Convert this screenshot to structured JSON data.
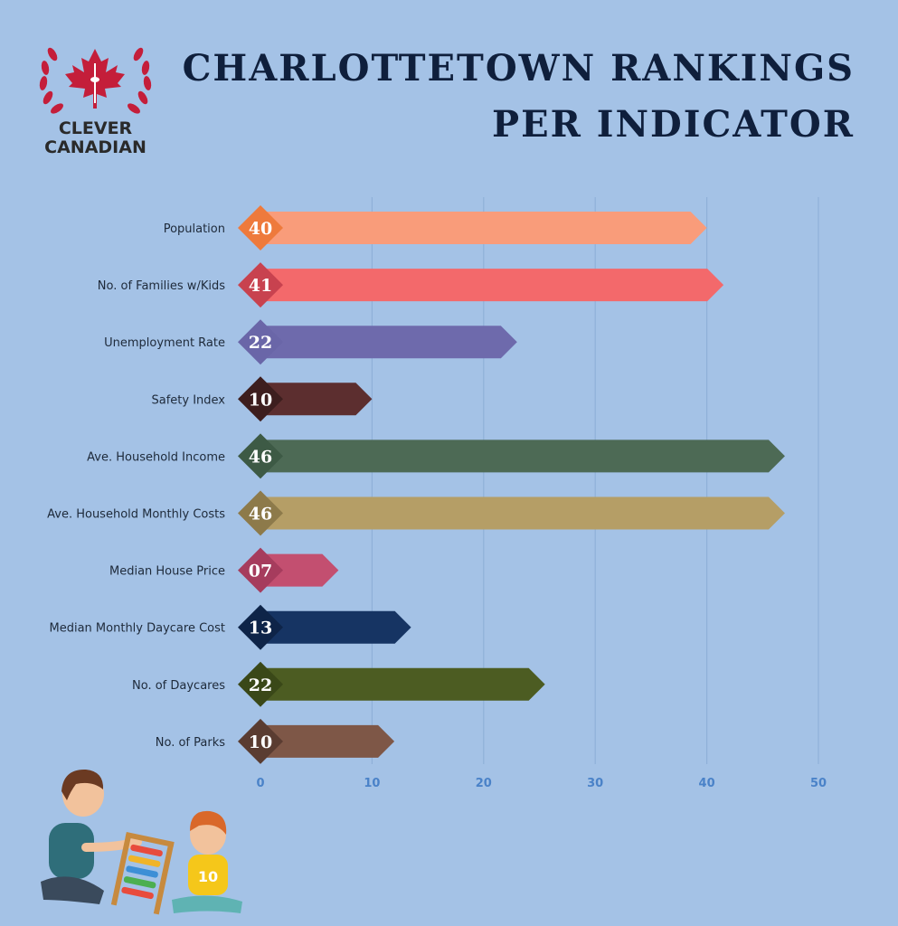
{
  "brand": {
    "line1": "CLEVER",
    "line2": "CANADIAN"
  },
  "title": {
    "line1": "CHARLOTTETOWN RANKINGS",
    "line2": "PER INDICATOR"
  },
  "chart_data": {
    "type": "bar",
    "orientation": "horizontal",
    "categories": [
      "Population",
      "No. of Families w/Kids",
      "Unemployment Rate",
      "Safety Index",
      "Ave. Household Income",
      "Ave. Household Monthly Costs",
      "Median House Price",
      "Median Monthly Daycare Cost",
      "No. of Daycares",
      "No. of Parks"
    ],
    "values": [
      40,
      41,
      22,
      10,
      46,
      46,
      7,
      13,
      22,
      10
    ],
    "value_labels": [
      "40",
      "41",
      "22",
      "10",
      "46",
      "46",
      "07",
      "13",
      "22",
      "10"
    ],
    "bar_lengths": [
      40,
      41.5,
      23,
      10,
      47,
      47,
      7,
      13.5,
      25.5,
      12
    ],
    "colors": [
      "#f99c7a",
      "#f3696b",
      "#6e6aac",
      "#5c2e2f",
      "#4d6a55",
      "#b59e66",
      "#c34f70",
      "#163463",
      "#4c5c22",
      "#7e5747"
    ],
    "badge_colors": [
      "#ee7a3c",
      "#c8424f",
      "#6a66a8",
      "#3d1e1e",
      "#3d5a45",
      "#8d7a4a",
      "#a63c5d",
      "#0e2448",
      "#3a4818",
      "#5a3c31"
    ],
    "xticks": [
      0,
      10,
      20,
      30,
      40,
      50
    ],
    "xlim": [
      0,
      50
    ],
    "grid": true,
    "title": "CHARLOTTETOWN RANKINGS PER INDICATOR",
    "xlabel": "",
    "ylabel": ""
  }
}
